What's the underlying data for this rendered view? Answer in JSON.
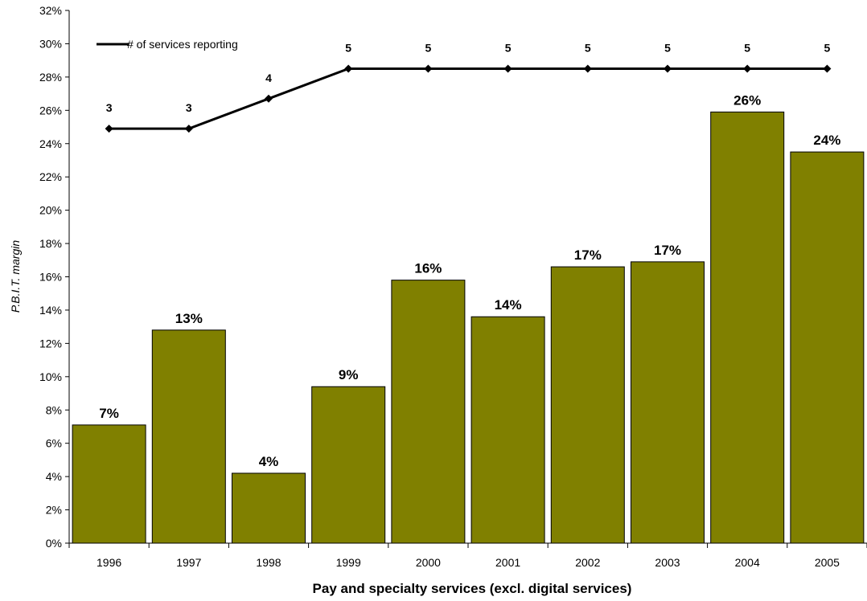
{
  "chart_data": {
    "type": "bar",
    "categories": [
      "1996",
      "1997",
      "1998",
      "1999",
      "2000",
      "2001",
      "2002",
      "2003",
      "2004",
      "2005"
    ],
    "values": [
      7.1,
      12.8,
      4.2,
      9.4,
      15.8,
      13.6,
      16.6,
      16.9,
      25.9,
      23.5
    ],
    "value_labels": [
      "7%",
      "13%",
      "4%",
      "9%",
      "16%",
      "14%",
      "17%",
      "17%",
      "26%",
      "24%"
    ],
    "bar_color": "#808000",
    "ylabel": "P.B.I.T. margin",
    "xlabel": "Pay and specialty services (excl. digital services)",
    "ylim": [
      0,
      32
    ],
    "ytick_step": 2,
    "ytick_suffix": "%",
    "line_series": {
      "name": "# of services reporting",
      "values": [
        3,
        3,
        4,
        5,
        5,
        5,
        5,
        5,
        5,
        5
      ],
      "plotted_at_percent": [
        24.9,
        24.9,
        26.7,
        28.5,
        28.5,
        28.5,
        28.5,
        28.5,
        28.5,
        28.5
      ],
      "color": "#000000",
      "marker": "diamond"
    },
    "legend_position": "top-left",
    "grid": false
  }
}
